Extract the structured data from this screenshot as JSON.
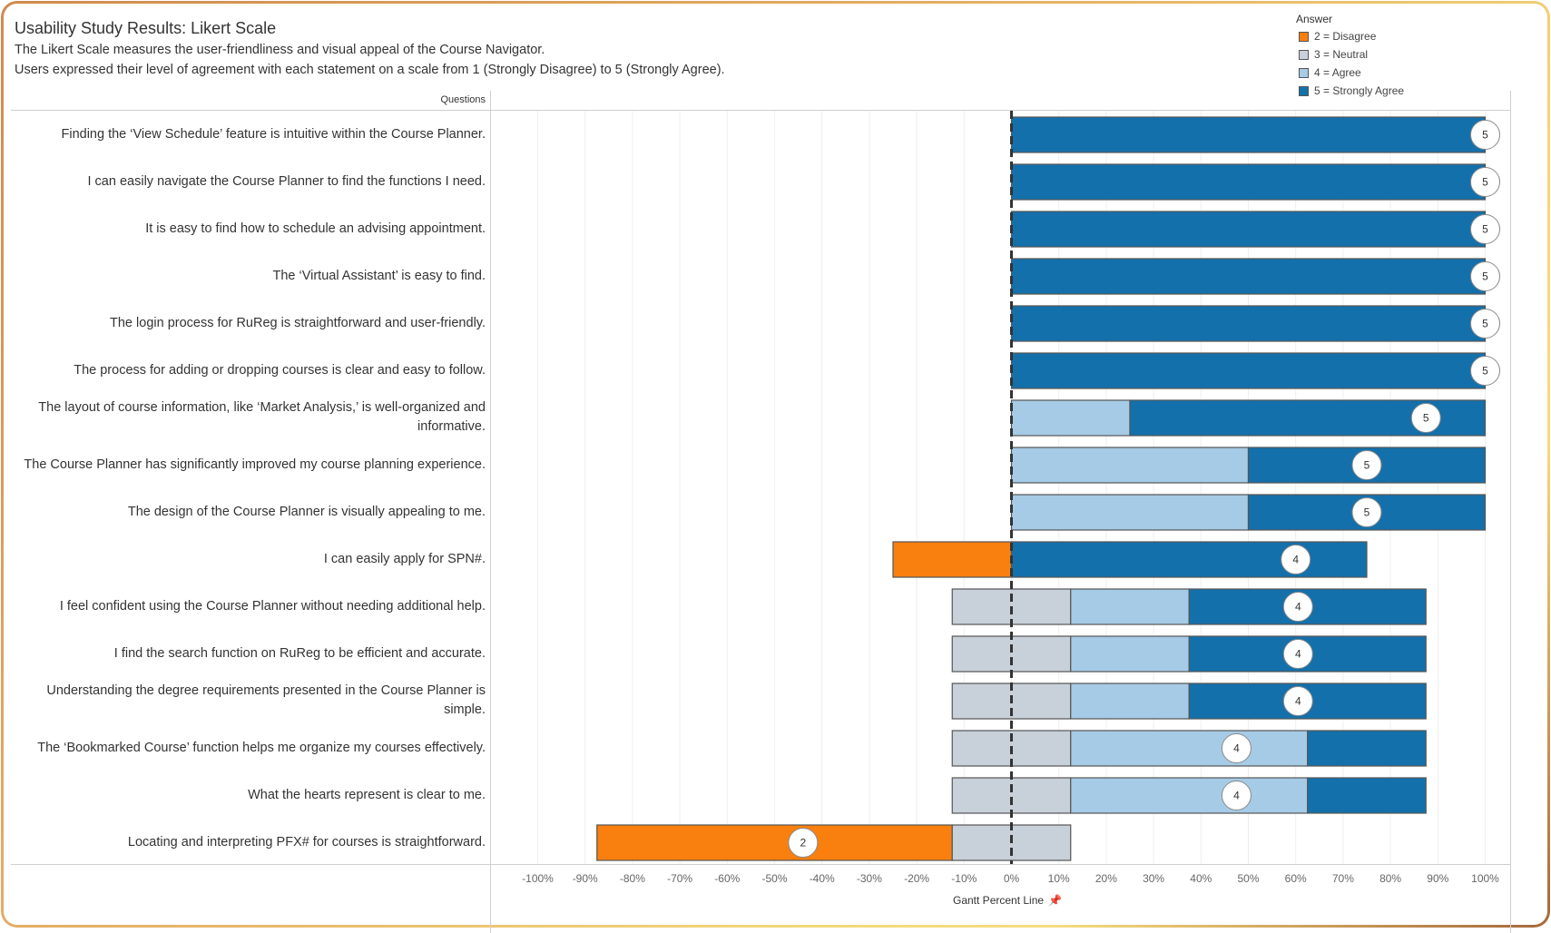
{
  "header": {
    "title": "Usability Study Results: Likert Scale",
    "subtitle_lines": [
      "The Likert Scale measures the user-friendliness and visual appeal of the Course Navigator.",
      "Users expressed their level of agreement with each statement on a scale from 1 (Strongly Disagree) to 5 (Strongly Agree)."
    ]
  },
  "legend": {
    "title": "Answer",
    "items": [
      {
        "label": "2 = Disagree",
        "color": "#f97f0e"
      },
      {
        "label": "3 = Neutral",
        "color": "#c8d0d9"
      },
      {
        "label": "4 = Agree",
        "color": "#a6cbe6"
      },
      {
        "label": "5 = Strongly Agree",
        "color": "#1470ab"
      }
    ]
  },
  "chart_data": {
    "type": "bar",
    "subtype": "diverging-stacked-gantt",
    "title": "Usability Study Results: Likert Scale",
    "row_header": "Questions",
    "xlabel": "Gantt Percent Line",
    "xlim": [
      -100,
      100
    ],
    "xticks": [
      -100,
      -90,
      -80,
      -70,
      -60,
      -50,
      -40,
      -30,
      -20,
      -10,
      0,
      10,
      20,
      30,
      40,
      50,
      60,
      70,
      80,
      90,
      100
    ],
    "tick_format": "percent",
    "grid": true,
    "zero_line": "dashed",
    "legend_position": "top-right",
    "colors": {
      "2": "#f97f0e",
      "3": "#c8d0d9",
      "4": "#a6cbe6",
      "5": "#1470ab"
    },
    "rows": [
      {
        "question": "Finding the ‘View Schedule’ feature is intuitive within the Course Planner.",
        "segments": [
          {
            "answer": "5",
            "start": 0,
            "end": 100
          }
        ],
        "label": "5",
        "label_at": 100
      },
      {
        "question": "I can easily navigate the Course Planner to find the functions I need.",
        "segments": [
          {
            "answer": "5",
            "start": 0,
            "end": 100
          }
        ],
        "label": "5",
        "label_at": 100
      },
      {
        "question": "It is easy to find how to schedule an advising appointment.",
        "segments": [
          {
            "answer": "5",
            "start": 0,
            "end": 100
          }
        ],
        "label": "5",
        "label_at": 100
      },
      {
        "question": "The ‘Virtual Assistant’ is easy to find.",
        "segments": [
          {
            "answer": "5",
            "start": 0,
            "end": 100
          }
        ],
        "label": "5",
        "label_at": 100
      },
      {
        "question": "The login process for RuReg is straightforward and user-friendly.",
        "segments": [
          {
            "answer": "5",
            "start": 0,
            "end": 100
          }
        ],
        "label": "5",
        "label_at": 100
      },
      {
        "question": "The process for adding or dropping courses is clear and easy to follow.",
        "segments": [
          {
            "answer": "5",
            "start": 0,
            "end": 100
          }
        ],
        "label": "5",
        "label_at": 100
      },
      {
        "question": "The layout of course information, like ‘Market Analysis,’ is well-organized and informative.",
        "segments": [
          {
            "answer": "4",
            "start": 0,
            "end": 25
          },
          {
            "answer": "5",
            "start": 25,
            "end": 100
          }
        ],
        "label": "5",
        "label_at": 87.5
      },
      {
        "question": "The Course Planner has significantly improved my course planning experience.",
        "segments": [
          {
            "answer": "4",
            "start": 0,
            "end": 50
          },
          {
            "answer": "5",
            "start": 50,
            "end": 100
          }
        ],
        "label": "5",
        "label_at": 75
      },
      {
        "question": "The design of the Course Planner is visually appealing to me.",
        "segments": [
          {
            "answer": "4",
            "start": 0,
            "end": 50
          },
          {
            "answer": "5",
            "start": 50,
            "end": 100
          }
        ],
        "label": "5",
        "label_at": 75
      },
      {
        "question": "I can easily apply for SPN#.",
        "segments": [
          {
            "answer": "2",
            "start": -25,
            "end": 0
          },
          {
            "answer": "5",
            "start": 0,
            "end": 75
          }
        ],
        "label": "4",
        "label_at": 60
      },
      {
        "question": "I feel confident using the Course Planner without needing additional help.",
        "segments": [
          {
            "answer": "3",
            "start": -12.5,
            "end": 12.5
          },
          {
            "answer": "4",
            "start": 12.5,
            "end": 37.5
          },
          {
            "answer": "5",
            "start": 37.5,
            "end": 87.5
          }
        ],
        "label": "4",
        "label_at": 60.5
      },
      {
        "question": "I find the search function on RuReg to be efficient and accurate.",
        "segments": [
          {
            "answer": "3",
            "start": -12.5,
            "end": 12.5
          },
          {
            "answer": "4",
            "start": 12.5,
            "end": 37.5
          },
          {
            "answer": "5",
            "start": 37.5,
            "end": 87.5
          }
        ],
        "label": "4",
        "label_at": 60.5
      },
      {
        "question": "Understanding the degree requirements presented in the Course Planner is simple.",
        "segments": [
          {
            "answer": "3",
            "start": -12.5,
            "end": 12.5
          },
          {
            "answer": "4",
            "start": 12.5,
            "end": 37.5
          },
          {
            "answer": "5",
            "start": 37.5,
            "end": 87.5
          }
        ],
        "label": "4",
        "label_at": 60.5
      },
      {
        "question": "The ‘Bookmarked Course’ function helps me organize my courses effectively.",
        "segments": [
          {
            "answer": "3",
            "start": -12.5,
            "end": 12.5
          },
          {
            "answer": "4",
            "start": 12.5,
            "end": 62.5
          },
          {
            "answer": "5",
            "start": 62.5,
            "end": 87.5
          }
        ],
        "label": "4",
        "label_at": 47.5
      },
      {
        "question": "What the hearts represent is clear to me.",
        "segments": [
          {
            "answer": "3",
            "start": -12.5,
            "end": 12.5
          },
          {
            "answer": "4",
            "start": 12.5,
            "end": 62.5
          },
          {
            "answer": "5",
            "start": 62.5,
            "end": 87.5
          }
        ],
        "label": "4",
        "label_at": 47.5
      },
      {
        "question": "Locating and interpreting PFX# for courses is straightforward.",
        "segments": [
          {
            "answer": "2",
            "start": -87.5,
            "end": -12.5
          },
          {
            "answer": "3",
            "start": -12.5,
            "end": 12.5
          }
        ],
        "label": "2",
        "label_at": -44
      }
    ]
  }
}
